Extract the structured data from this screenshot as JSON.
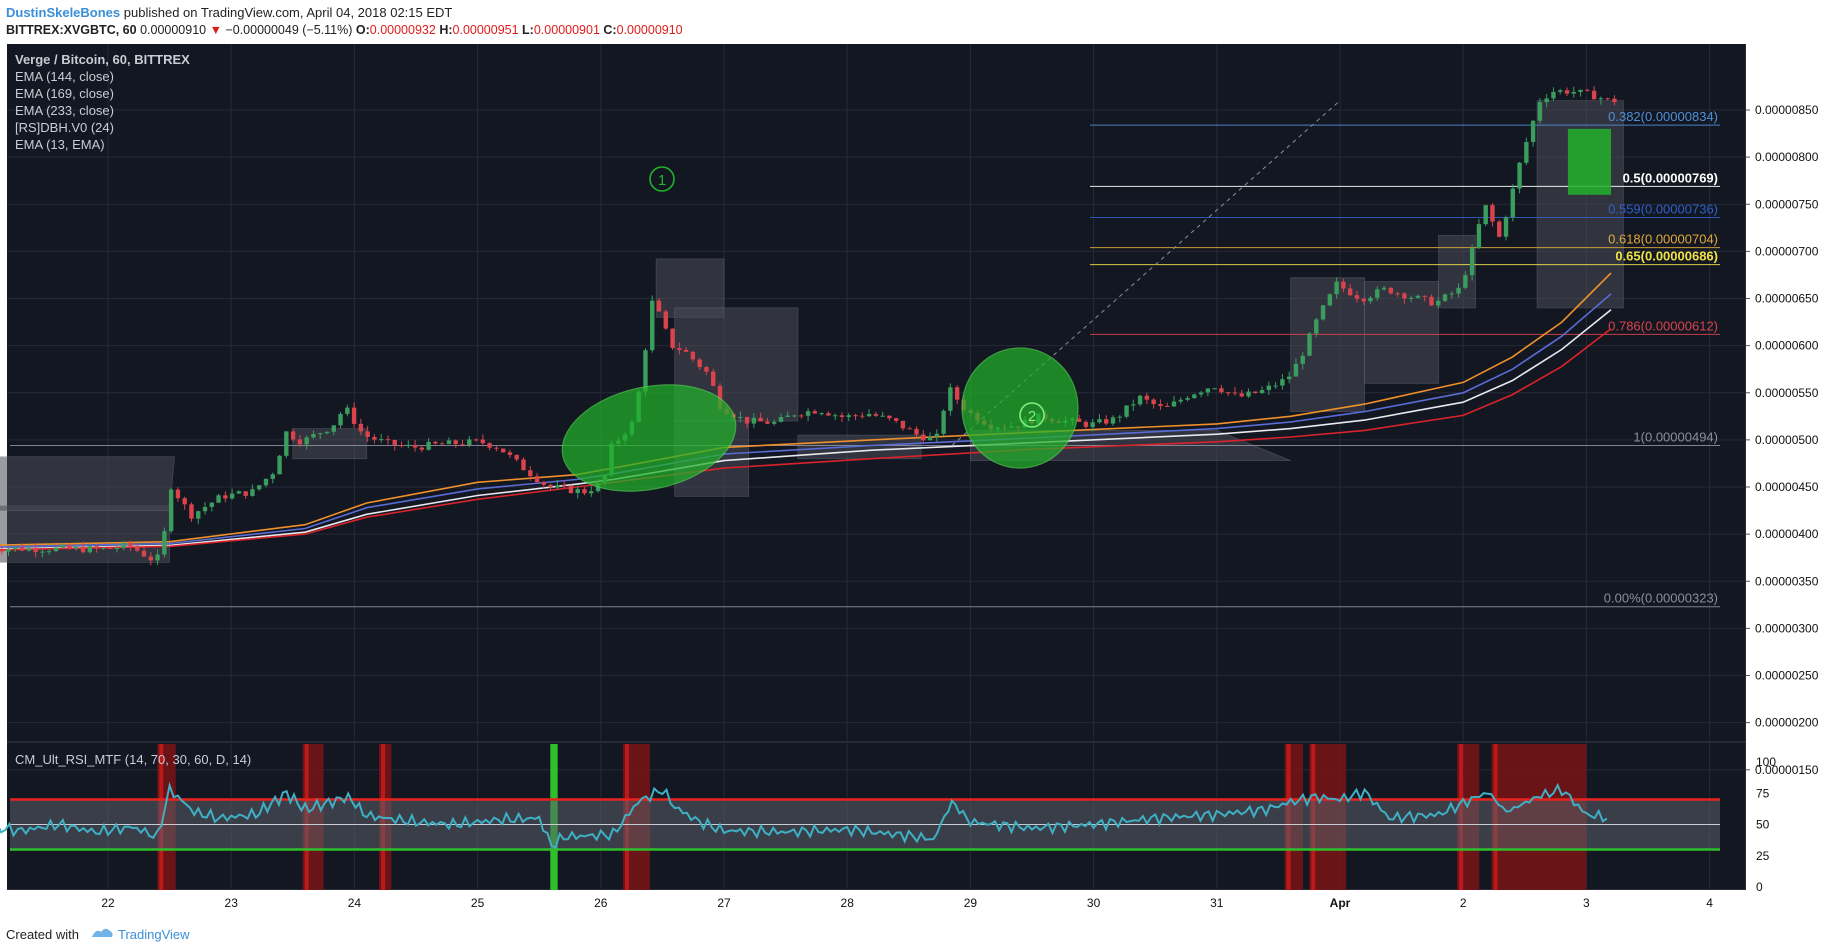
{
  "header": {
    "author": "DustinSkeleBones",
    "published": "published on TradingView.com, April 04, 2018 02:15 EDT",
    "symbol": "BITTREX:XVGBTC, 60",
    "last": "0.00000910",
    "change_arrow": "▼",
    "change": "−0.00000049 (−5.11%)",
    "o_label": "O:",
    "o": "0.00000932",
    "h_label": "H:",
    "h": "0.00000951",
    "l_label": "L:",
    "l": "0.00000901",
    "c_label": "C:",
    "c": "0.00000910"
  },
  "legend": {
    "title": "Verge / Bitcoin, 60, BITTREX",
    "lines": [
      "EMA (144, close)",
      "EMA (169, close)",
      "EMA (233, close)",
      "[RS]DBH.V0 (24)",
      "EMA (13, EMA)"
    ]
  },
  "rsi_legend": "CM_Ult_RSI_MTF (14, 70, 30, 60, D, 14)",
  "footer": {
    "created_with": "Created with",
    "brand": "TradingView"
  },
  "colors": {
    "background": "#131722",
    "grid": "#262a36",
    "candle_up": "#3a9d5e",
    "candle_down": "#d9434b",
    "ema144": "#f0902a",
    "ema169": "#5a6cd6",
    "ema233": "#e8e8ee",
    "ema13": "#d9232a",
    "rsi_line": "#3fb0c4",
    "rsi_high": "#e8231e",
    "rsi_low": "#2ec02c",
    "marker_green": "#22b22a"
  },
  "chart_data": [
    {
      "type": "candlestick",
      "title": "Verge / Bitcoin, 60, BITTREX",
      "x_ticks": [
        "22",
        "23",
        "24",
        "25",
        "26",
        "27",
        "28",
        "29",
        "30",
        "31",
        "Apr",
        "2",
        "3",
        "4"
      ],
      "y_ticks": [
        "0.00000850",
        "0.00000800",
        "0.00000750",
        "0.00000700",
        "0.00000650",
        "0.00000600",
        "0.00000550",
        "0.00000500",
        "0.00000450",
        "0.00000400",
        "0.00000350",
        "0.00000300",
        "0.00000250",
        "0.00000200",
        "0.00000150"
      ],
      "ylim": [
        1.3e-06,
        8.8e-06
      ],
      "price_path": [
        [
          0,
          385
        ],
        [
          10,
          384
        ],
        [
          12,
          388
        ],
        [
          14,
          372
        ],
        [
          14.7,
          378
        ],
        [
          15.2,
          455
        ],
        [
          17,
          420
        ],
        [
          19.5,
          440
        ],
        [
          22,
          445
        ],
        [
          24,
          470
        ],
        [
          24.5,
          510
        ],
        [
          26,
          498
        ],
        [
          28.5,
          515
        ],
        [
          29.5,
          535
        ],
        [
          31,
          505
        ],
        [
          33,
          496
        ],
        [
          35,
          492
        ],
        [
          37,
          495
        ],
        [
          40.5,
          498
        ],
        [
          42,
          492
        ],
        [
          44,
          470
        ],
        [
          46,
          450
        ],
        [
          49,
          445
        ],
        [
          50.5,
          455
        ],
        [
          51,
          490
        ],
        [
          53,
          520
        ],
        [
          54.5,
          650
        ],
        [
          56,
          600
        ],
        [
          57,
          595
        ],
        [
          59,
          570
        ],
        [
          60,
          535
        ],
        [
          62,
          520
        ],
        [
          64.5,
          518
        ],
        [
          66,
          528
        ],
        [
          68,
          532
        ],
        [
          70,
          524
        ],
        [
          72,
          528
        ],
        [
          74,
          520
        ],
        [
          76,
          505
        ],
        [
          77.5,
          500
        ],
        [
          78.5,
          555
        ],
        [
          80,
          530
        ],
        [
          82,
          515
        ],
        [
          84,
          515
        ],
        [
          86,
          525
        ],
        [
          88,
          520
        ],
        [
          90,
          516
        ],
        [
          92,
          522
        ],
        [
          94,
          545
        ],
        [
          96,
          532
        ],
        [
          98,
          548
        ],
        [
          100,
          558
        ],
        [
          102,
          545
        ],
        [
          104,
          552
        ],
        [
          106,
          565
        ],
        [
          107,
          585
        ],
        [
          108.5,
          630
        ],
        [
          110,
          665
        ],
        [
          112,
          650
        ],
        [
          114,
          660
        ],
        [
          116,
          652
        ],
        [
          118,
          645
        ],
        [
          120,
          660
        ],
        [
          121,
          700
        ],
        [
          122,
          750
        ],
        [
          123.2,
          715
        ],
        [
          124,
          750
        ],
        [
          125,
          800
        ],
        [
          126.5,
          860
        ],
        [
          127.5,
          870
        ],
        [
          129,
          870
        ],
        [
          131,
          865
        ],
        [
          132,
          860
        ]
      ],
      "ema_series": [
        {
          "name": "EMA (144, close)",
          "values": [
            [
              0,
              388
            ],
            [
              15,
              392
            ],
            [
              26,
              410
            ],
            [
              31,
              433
            ],
            [
              40,
              455
            ],
            [
              48,
              463
            ],
            [
              51,
              470
            ],
            [
              60,
              492
            ],
            [
              72,
              500
            ],
            [
              85,
              508
            ],
            [
              100,
              517
            ],
            [
              106,
              525
            ],
            [
              112,
              538
            ],
            [
              120,
              561
            ],
            [
              124,
              588
            ],
            [
              128,
              625
            ],
            [
              132,
              677
            ]
          ]
        },
        {
          "name": "EMA (169, close)",
          "values": [
            [
              0,
              386
            ],
            [
              15,
              390
            ],
            [
              26,
              406
            ],
            [
              31,
              428
            ],
            [
              40,
              448
            ],
            [
              48,
              458
            ],
            [
              51,
              464
            ],
            [
              60,
              485
            ],
            [
              72,
              494
            ],
            [
              85,
              502
            ],
            [
              100,
              512
            ],
            [
              106,
              519
            ],
            [
              112,
              530
            ],
            [
              120,
              550
            ],
            [
              124,
              575
            ],
            [
              128,
              610
            ],
            [
              132,
              655
            ]
          ]
        },
        {
          "name": "EMA (233, close)",
          "values": [
            [
              0,
              384
            ],
            [
              15,
              388
            ],
            [
              26,
              402
            ],
            [
              31,
              421
            ],
            [
              40,
              441
            ],
            [
              48,
              453
            ],
            [
              51,
              458
            ],
            [
              60,
              478
            ],
            [
              72,
              489
            ],
            [
              85,
              497
            ],
            [
              100,
              506
            ],
            [
              106,
              512
            ],
            [
              112,
              521
            ],
            [
              120,
              540
            ],
            [
              124,
              563
            ],
            [
              128,
              596
            ],
            [
              132,
              638
            ]
          ]
        },
        {
          "name": "EMA (13, EMA)",
          "values": [
            [
              0,
              383
            ],
            [
              15,
              387
            ],
            [
              26,
              400
            ],
            [
              31,
              418
            ],
            [
              40,
              437
            ],
            [
              48,
              450
            ],
            [
              51,
              455
            ],
            [
              60,
              470
            ],
            [
              72,
              480
            ],
            [
              85,
              490
            ],
            [
              100,
              498
            ],
            [
              106,
              503
            ],
            [
              112,
              510
            ],
            [
              120,
              526
            ],
            [
              124,
              548
            ],
            [
              128,
              578
            ],
            [
              132,
              618
            ]
          ]
        }
      ],
      "fib_levels": [
        {
          "label": "0.382(0.00000834)",
          "value": 834,
          "color": "#4f8fd6"
        },
        {
          "label": "0.5(0.00000769)",
          "value": 769,
          "color": "#ffffff"
        },
        {
          "label": "0.559(0.00000736)",
          "value": 736,
          "color": "#2f5fc8"
        },
        {
          "label": "0.618(0.00000704)",
          "value": 704,
          "color": "#e0a93a"
        },
        {
          "label": "0.65(0.00000686)",
          "value": 686,
          "color": "#f0e245"
        },
        {
          "label": "0.786(0.00000612)",
          "value": 612,
          "color": "#d9434b"
        },
        {
          "label": "1(0.00000494)",
          "value": 494,
          "color": "#8a8f99"
        },
        {
          "label": "0.00%(0.00000323)",
          "value": 323,
          "color": "#8a8f99"
        }
      ],
      "annotations": [
        "1",
        "2"
      ]
    },
    {
      "type": "line",
      "title": "CM_Ult_RSI_MTF (14, 70, 30, 60, D, 14)",
      "y_ticks": [
        "100",
        "75",
        "50",
        "25",
        "0"
      ],
      "ylim": [
        -5,
        105
      ],
      "upper_band": 70,
      "lower_band": 30,
      "rsi": [
        [
          0,
          48
        ],
        [
          3,
          45
        ],
        [
          6,
          50
        ],
        [
          9,
          44
        ],
        [
          12,
          48
        ],
        [
          14,
          40
        ],
        [
          15,
          78
        ],
        [
          17,
          60
        ],
        [
          19,
          55
        ],
        [
          22,
          58
        ],
        [
          24.5,
          75
        ],
        [
          26,
          62
        ],
        [
          29.5,
          72
        ],
        [
          31,
          57
        ],
        [
          35,
          52
        ],
        [
          38,
          50
        ],
        [
          42,
          54
        ],
        [
          45,
          55
        ],
        [
          46,
          33
        ],
        [
          47,
          40
        ],
        [
          51,
          42
        ],
        [
          53,
          68
        ],
        [
          55,
          78
        ],
        [
          56,
          64
        ],
        [
          58,
          52
        ],
        [
          60,
          45
        ],
        [
          65,
          44
        ],
        [
          70,
          46
        ],
        [
          75,
          41
        ],
        [
          77,
          38
        ],
        [
          78.5,
          68
        ],
        [
          80,
          52
        ],
        [
          85,
          47
        ],
        [
          90,
          50
        ],
        [
          95,
          55
        ],
        [
          100,
          58
        ],
        [
          104,
          62
        ],
        [
          106,
          68
        ],
        [
          108,
          72
        ],
        [
          110,
          70
        ],
        [
          112,
          76
        ],
        [
          114,
          55
        ],
        [
          118,
          58
        ],
        [
          122,
          76
        ],
        [
          123.5,
          60
        ],
        [
          126,
          72
        ],
        [
          128,
          78
        ],
        [
          130,
          58
        ],
        [
          132,
          55
        ]
      ],
      "overbought_zones": [
        [
          14,
          15.5
        ],
        [
          25.8,
          27.5
        ],
        [
          32,
          33
        ],
        [
          51.8,
          54
        ],
        [
          105.5,
          107
        ],
        [
          107.5,
          110.5
        ],
        [
          119.5,
          121.3
        ],
        [
          122.3,
          130
        ]
      ],
      "oversold_zones": [
        [
          45.9,
          46.5
        ]
      ]
    }
  ]
}
